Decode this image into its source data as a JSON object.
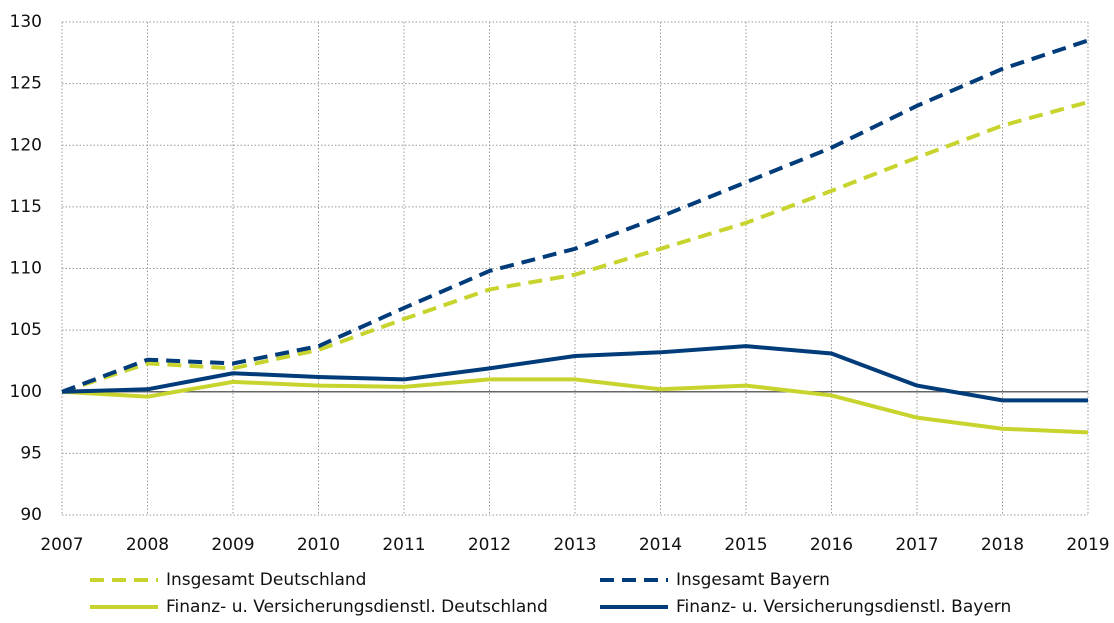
{
  "chart_data": {
    "type": "line",
    "x": [
      2007,
      2008,
      2009,
      2010,
      2011,
      2012,
      2013,
      2014,
      2015,
      2016,
      2017,
      2018,
      2019
    ],
    "xlim": [
      2007,
      2019
    ],
    "xticks": [
      2007,
      2008,
      2009,
      2010,
      2011,
      2012,
      2013,
      2014,
      2015,
      2016,
      2017,
      2018,
      2019
    ],
    "ylim": [
      90,
      130
    ],
    "yticks": [
      90,
      95,
      100,
      105,
      110,
      115,
      120,
      125,
      130
    ],
    "grid": true,
    "reference_line": 100,
    "legend": "bottom",
    "series": [
      {
        "name": "Insgesamt Deutschland",
        "color": "#c8d42e",
        "dashed": true,
        "values": [
          100,
          102.3,
          101.9,
          103.4,
          105.9,
          108.3,
          109.5,
          111.6,
          113.7,
          116.3,
          119.0,
          121.6,
          123.5
        ]
      },
      {
        "name": "Insgesamt Bayern",
        "color": "#003b7a",
        "dashed": true,
        "values": [
          100,
          102.6,
          102.3,
          103.7,
          106.8,
          109.8,
          111.6,
          114.2,
          117.0,
          119.8,
          123.2,
          126.2,
          128.5
        ]
      },
      {
        "name": "Finanz- u. Versicherungsdienstl. Deutschland",
        "color": "#c8d42e",
        "dashed": false,
        "values": [
          100,
          99.6,
          100.8,
          100.5,
          100.4,
          101.0,
          101.0,
          100.2,
          100.5,
          99.7,
          97.9,
          97.0,
          96.7
        ]
      },
      {
        "name": "Finanz- u. Versicherungsdienstl. Bayern",
        "color": "#003b7a",
        "dashed": false,
        "values": [
          100,
          100.2,
          101.5,
          101.2,
          101.0,
          101.9,
          102.9,
          103.2,
          103.7,
          103.1,
          100.5,
          99.3,
          99.3
        ]
      }
    ]
  }
}
